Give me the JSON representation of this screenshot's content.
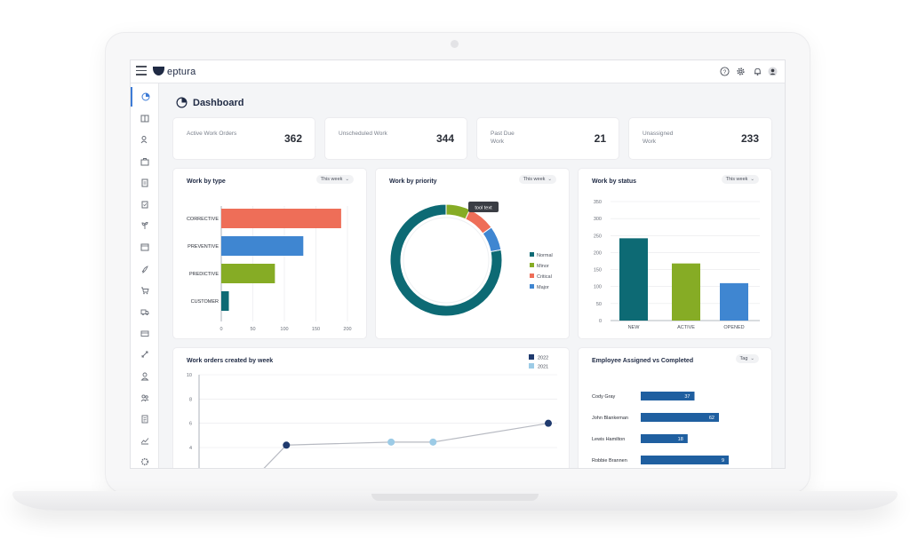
{
  "brand": {
    "logo_text": "eptura"
  },
  "header": {
    "icons": [
      "help-icon",
      "gear-icon",
      "bell-icon",
      "avatar"
    ]
  },
  "sidebar": {
    "icons": [
      "dashboard-icon",
      "building-icon",
      "people-icon",
      "toolbox-icon",
      "document-icon",
      "clipboard-icon",
      "plant-icon",
      "calendar-icon",
      "rocket-icon",
      "cart-icon",
      "truck-icon",
      "box-icon",
      "arrows-icon",
      "user-icon",
      "team-icon",
      "report-icon",
      "chart-icon",
      "settings-icon"
    ]
  },
  "page": {
    "title": "Dashboard"
  },
  "kpis": [
    {
      "label": "Active Work Orders",
      "value": "362"
    },
    {
      "label": "Unscheduled Work",
      "value": "344"
    },
    {
      "label": "Past Due Work",
      "value": "21"
    },
    {
      "label": "Unassigned Work",
      "value": "233"
    }
  ],
  "work_by_type": {
    "title": "Work by type",
    "filter": "This week",
    "chart_data": {
      "type": "bar",
      "orientation": "horizontal",
      "categories": [
        "CORRECTIVE",
        "PREVENTIVE",
        "PREDICTIVE",
        "CUSTOMER"
      ],
      "values": [
        190,
        130,
        85,
        12
      ],
      "xlim": [
        0,
        200
      ],
      "xticks": [
        "0",
        "50",
        "100",
        "150",
        "200"
      ],
      "colors": [
        "#ee6e58",
        "#3f86d1",
        "#86ac25",
        "#0d6a74"
      ]
    }
  },
  "work_by_priority": {
    "title": "Work by priority",
    "filter": "This week",
    "tooltip": "tool text",
    "chart_data": {
      "type": "pie",
      "donut": true,
      "series": [
        {
          "name": "Normal",
          "value": 78,
          "color": "#0d6a74"
        },
        {
          "name": "Minor",
          "value": 7,
          "color": "#86ac25"
        },
        {
          "name": "Critical",
          "value": 8,
          "color": "#ee6e58"
        },
        {
          "name": "Major",
          "value": 7,
          "color": "#3f86d1"
        }
      ]
    }
  },
  "work_by_status": {
    "title": "Work by status",
    "filter": "This week",
    "chart_data": {
      "type": "bar",
      "categories": [
        "NEW",
        "ACTIVE",
        "OPENED"
      ],
      "values": [
        242,
        168,
        110
      ],
      "ylim": [
        0,
        350
      ],
      "yticks": [
        "0",
        "50",
        "100",
        "150",
        "200",
        "250",
        "300",
        "350"
      ],
      "colors": [
        "#0d6a74",
        "#86ac25",
        "#3f86d1"
      ]
    }
  },
  "work_orders_by_week": {
    "title": "Work orders created by week",
    "chart_data": {
      "type": "line",
      "ylim": [
        2,
        10
      ],
      "yticks": [
        "4",
        "6",
        "8",
        "10"
      ],
      "series": [
        {
          "name": "2022",
          "color": "#1f3a6e",
          "points": [
            [
              0.25,
              4.2
            ],
            [
              1.0,
              6.0
            ]
          ]
        },
        {
          "name": "2021",
          "color": "#9ccbe6",
          "points": [
            [
              0.55,
              4.45
            ],
            [
              0.67,
              4.45
            ]
          ]
        }
      ]
    }
  },
  "employee_assigned": {
    "title": "Employee Assigned vs Completed",
    "filter": "Tag",
    "chart_data": {
      "type": "bar",
      "orientation": "horizontal",
      "categories": [
        "Cody Gray",
        "John Blankeman",
        "Lewis Hamilton",
        "Robbie Brannen"
      ],
      "values": [
        37,
        62,
        18,
        9
      ],
      "bar_fraction": [
        0.55,
        0.8,
        0.48,
        0.9
      ],
      "color": "#1f5fa0"
    }
  }
}
